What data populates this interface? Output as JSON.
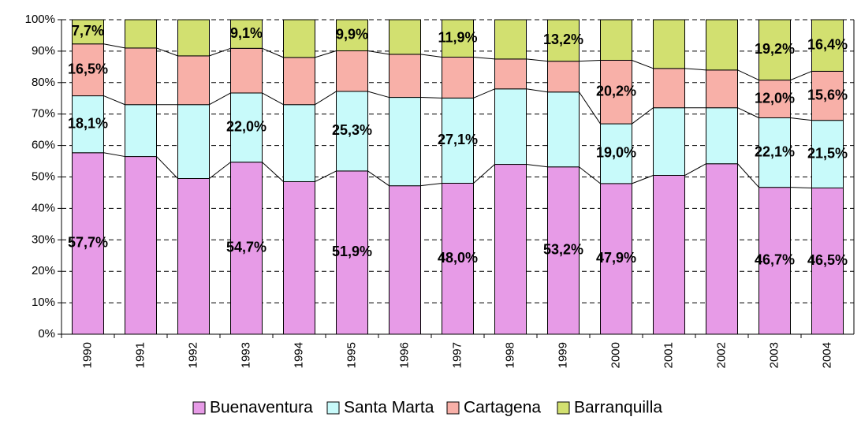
{
  "chart_data": {
    "type": "stacked-bar",
    "categories": [
      "1990",
      "1991",
      "1992",
      "1993",
      "1994",
      "1995",
      "1996",
      "1997",
      "1998",
      "1999",
      "2000",
      "2001",
      "2002",
      "2003",
      "2004"
    ],
    "ylim": [
      0,
      100
    ],
    "yticks": [
      {
        "value": 0,
        "label": "0%"
      },
      {
        "value": 10,
        "label": "10%"
      },
      {
        "value": 20,
        "label": "20%"
      },
      {
        "value": 30,
        "label": "30%"
      },
      {
        "value": 40,
        "label": "40%"
      },
      {
        "value": 50,
        "label": "50%"
      },
      {
        "value": 60,
        "label": "60%"
      },
      {
        "value": 70,
        "label": "70%"
      },
      {
        "value": 80,
        "label": "80%"
      },
      {
        "value": 90,
        "label": "90%"
      },
      {
        "value": 100,
        "label": "100%"
      }
    ],
    "grid": true,
    "legend": "bottom",
    "series": [
      {
        "name": "Buenaventura",
        "color": "#e79be7",
        "values": [
          57.7,
          56.5,
          49.5,
          54.7,
          48.5,
          51.9,
          47.2,
          48.0,
          54.0,
          53.2,
          47.9,
          50.5,
          54.2,
          46.7,
          46.5
        ],
        "value_labels": [
          "57,7%",
          null,
          null,
          "54,7%",
          null,
          "51,9%",
          null,
          "48,0%",
          null,
          "53,2%",
          "47,9%",
          null,
          null,
          "46,7%",
          "46,5%"
        ]
      },
      {
        "name": "Santa Marta",
        "color": "#c8fafa",
        "values": [
          18.1,
          16.5,
          23.5,
          22.0,
          24.5,
          25.3,
          28.1,
          27.1,
          24.0,
          23.8,
          19.0,
          21.5,
          17.8,
          22.1,
          21.5
        ],
        "value_labels": [
          "18,1%",
          null,
          null,
          "22,0%",
          null,
          "25,3%",
          null,
          "27,1%",
          null,
          null,
          "19,0%",
          null,
          null,
          "22,1%",
          "21,5%"
        ]
      },
      {
        "name": "Cartagena",
        "color": "#f8b0a8",
        "values": [
          16.5,
          18.0,
          15.5,
          14.2,
          15.0,
          12.9,
          13.7,
          13.0,
          9.5,
          9.8,
          20.2,
          12.5,
          12.0,
          12.0,
          15.6
        ],
        "value_labels": [
          "16,5%",
          null,
          null,
          null,
          null,
          null,
          null,
          null,
          null,
          null,
          "20,2%",
          null,
          null,
          "12,0%",
          "15,6%"
        ]
      },
      {
        "name": "Barranquilla",
        "color": "#d2e070",
        "values": [
          7.7,
          9.0,
          11.5,
          9.1,
          12.0,
          9.9,
          11.0,
          11.9,
          12.5,
          13.2,
          12.9,
          15.5,
          16.0,
          19.2,
          16.4
        ],
        "value_labels": [
          "7,7%",
          null,
          null,
          "9,1%",
          null,
          "9,9%",
          null,
          "11,9%",
          null,
          "13,2%",
          null,
          null,
          null,
          "19,2%",
          "16,4%"
        ]
      }
    ]
  }
}
